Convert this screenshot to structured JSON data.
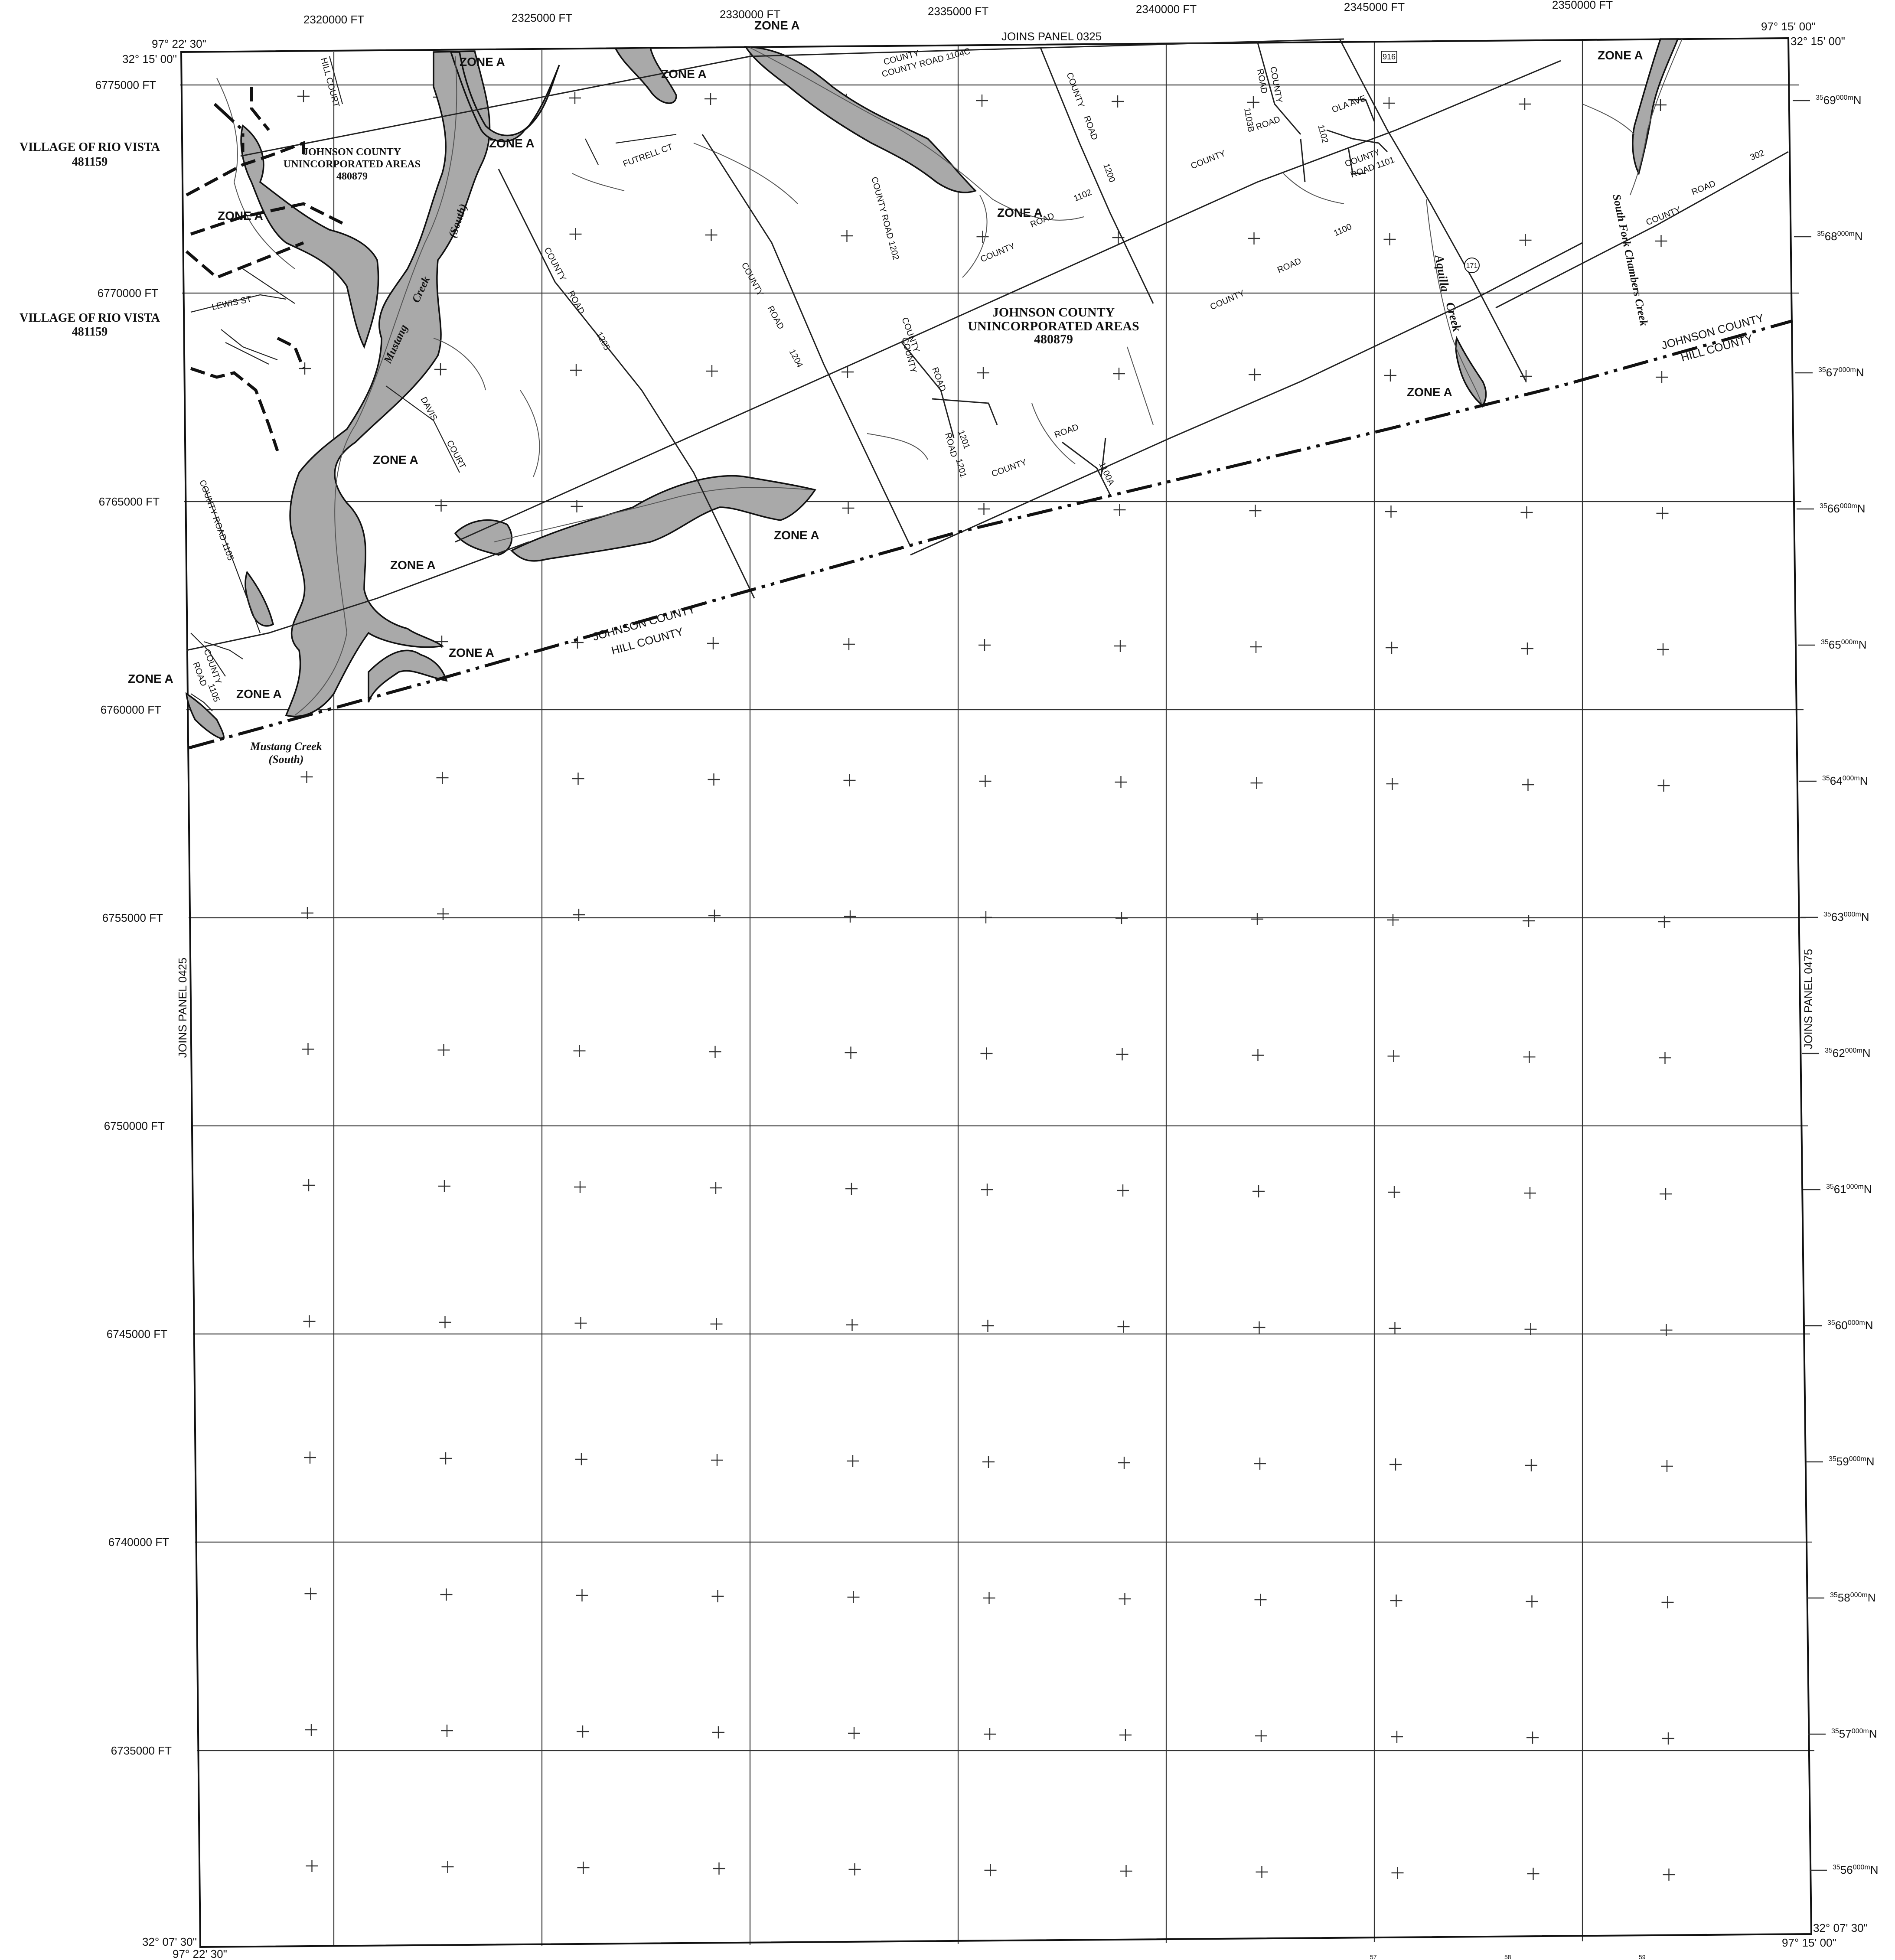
{
  "map": {
    "top_eastings": [
      "2320000 FT",
      "2325000 FT",
      "2330000 FT",
      "2335000 FT",
      "2340000 FT",
      "2345000 FT",
      "2350000 FT"
    ],
    "left_northings": [
      "6775000 FT",
      "6770000 FT",
      "6765000 FT",
      "6760000 FT",
      "6755000 FT",
      "6750000 FT",
      "6745000 FT",
      "6740000 FT",
      "6735000 FT"
    ],
    "utm_northing_labels": [
      {
        "prefix": "35",
        "major": "69",
        "sup": "000m",
        "suffix": "N"
      },
      {
        "prefix": "35",
        "major": "68",
        "sup": "000m",
        "suffix": "N"
      },
      {
        "prefix": "35",
        "major": "67",
        "sup": "000m",
        "suffix": "N"
      },
      {
        "prefix": "35",
        "major": "66",
        "sup": "000m",
        "suffix": "N"
      },
      {
        "prefix": "35",
        "major": "65",
        "sup": "000m",
        "suffix": "N"
      },
      {
        "prefix": "35",
        "major": "64",
        "sup": "000m",
        "suffix": "N"
      },
      {
        "prefix": "35",
        "major": "63",
        "sup": "000m",
        "suffix": "N"
      },
      {
        "prefix": "35",
        "major": "62",
        "sup": "000m",
        "suffix": "N"
      },
      {
        "prefix": "35",
        "major": "61",
        "sup": "000m",
        "suffix": "N"
      },
      {
        "prefix": "35",
        "major": "60",
        "sup": "000m",
        "suffix": "N"
      },
      {
        "prefix": "35",
        "major": "59",
        "sup": "000m",
        "suffix": "N"
      },
      {
        "prefix": "35",
        "major": "58",
        "sup": "000m",
        "suffix": "N"
      },
      {
        "prefix": "35",
        "major": "57",
        "sup": "000m",
        "suffix": "N"
      },
      {
        "prefix": "35",
        "major": "56",
        "sup": "000m",
        "suffix": "N"
      }
    ],
    "corners": {
      "nw_lon": "97° 22' 30\"",
      "nw_lat": "32° 15' 00\"",
      "ne_lon": "97° 15' 00\"",
      "ne_lat": "32° 15' 00\"",
      "sw_lat": "32° 07' 30\"",
      "sw_lon": "97° 22' 30\"",
      "se_lat": "32° 07' 30\"",
      "se_lon": "97° 15' 00\""
    },
    "joins": {
      "north": "JOINS PANEL 0325",
      "west": "JOINS PANEL 0425",
      "east": "JOINS PANEL 0475"
    },
    "communities": [
      {
        "name": "VILLAGE OF RIO VISTA",
        "id": "481159"
      },
      {
        "name": "VILLAGE OF RIO VISTA",
        "id": "481159"
      },
      {
        "name_line1": "JOHNSON COUNTY",
        "name_line2": "UNINCORPORATED AREAS",
        "id": "480879"
      },
      {
        "name_line1": "JOHNSON COUNTY",
        "name_line2": "UNINCORPORATED AREAS",
        "id": "480879"
      }
    ],
    "zone_label": "ZONE A",
    "county_line": {
      "north": "JOHNSON COUNTY",
      "south": "HILL COUNTY"
    },
    "streams": {
      "mustang": "Mustang",
      "creek": "Creek",
      "south": "(South)",
      "mustang_creek": "Mustang Creek",
      "aquilla": "Aquilla",
      "south_fork": "South Fork Chambers Creek"
    },
    "roads": {
      "county": "COUNTY",
      "road": "ROAD",
      "county_road": "COUNTY ROAD",
      "cr_1104c": "COUNTY ROAD 1104C",
      "cr_1202": "COUNTY ROAD 1202",
      "cr_1105": "COUNTY ROAD 1105",
      "cr_1101": "ROAD 1101",
      "n1205": "1205",
      "n1204": "1204",
      "n1201": "1201",
      "n1200": "1200",
      "n1102": "1102",
      "n1100": "1100",
      "n1100a": "1100A",
      "n1103b": "1103B",
      "n1105": "1105",
      "n302": "302",
      "futrell": "FUTRELL CT",
      "lewis": "LEWIS ST",
      "hill_court": "HILL COURT",
      "davis": "DAVIS",
      "court": "COURT",
      "ola": "OLA AVE",
      "hwy916": "916",
      "hwy171": "171"
    },
    "bottom_partial": [
      "57",
      "58",
      "59"
    ]
  }
}
